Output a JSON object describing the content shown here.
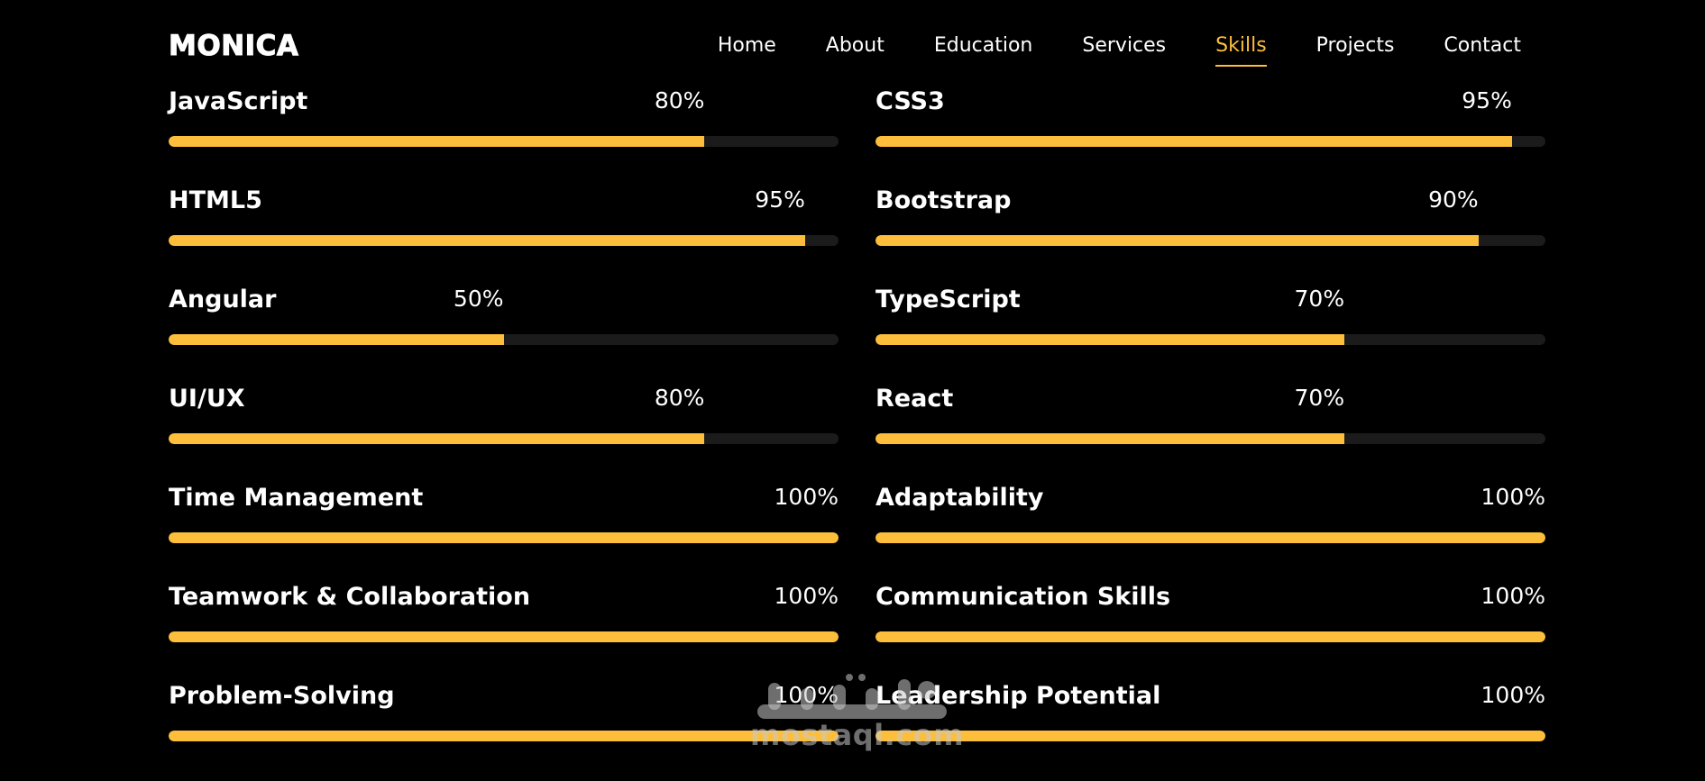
{
  "header": {
    "logo": "MONICA",
    "nav": [
      {
        "label": "Home",
        "active": false
      },
      {
        "label": "About",
        "active": false
      },
      {
        "label": "Education",
        "active": false
      },
      {
        "label": "Services",
        "active": false
      },
      {
        "label": "Skills",
        "active": true
      },
      {
        "label": "Projects",
        "active": false
      },
      {
        "label": "Contact",
        "active": false
      }
    ]
  },
  "skills": {
    "left": [
      {
        "name": "JavaScript",
        "percent_label": "80%",
        "level": 0.8
      },
      {
        "name": "HTML5",
        "percent_label": "95%",
        "level": 0.95
      },
      {
        "name": "Angular",
        "percent_label": "50%",
        "level": 0.5
      },
      {
        "name": "UI/UX",
        "percent_label": "80%",
        "level": 0.8
      },
      {
        "name": "Time Management",
        "percent_label": "100%",
        "level": 1.0
      },
      {
        "name": "Teamwork & Collaboration",
        "percent_label": "100%",
        "level": 1.0
      },
      {
        "name": "Problem-Solving",
        "percent_label": "100%",
        "level": 1.0
      }
    ],
    "right": [
      {
        "name": "CSS3",
        "percent_label": "95%",
        "level": 0.95
      },
      {
        "name": "Bootstrap",
        "percent_label": "90%",
        "level": 0.9
      },
      {
        "name": "TypeScript",
        "percent_label": "70%",
        "level": 0.7
      },
      {
        "name": "React",
        "percent_label": "70%",
        "level": 0.7
      },
      {
        "name": "Adaptability",
        "percent_label": "100%",
        "level": 1.0
      },
      {
        "name": "Communication Skills",
        "percent_label": "100%",
        "level": 1.0
      },
      {
        "name": "Leadership Potential",
        "percent_label": "100%",
        "level": 1.0
      }
    ]
  },
  "watermark": {
    "text": "mostaql.com",
    "logo_text": "مستقل"
  },
  "colors": {
    "accent": "#FDBE3B",
    "background": "#000000",
    "track": "#1b1b1b",
    "text": "#ffffff"
  }
}
